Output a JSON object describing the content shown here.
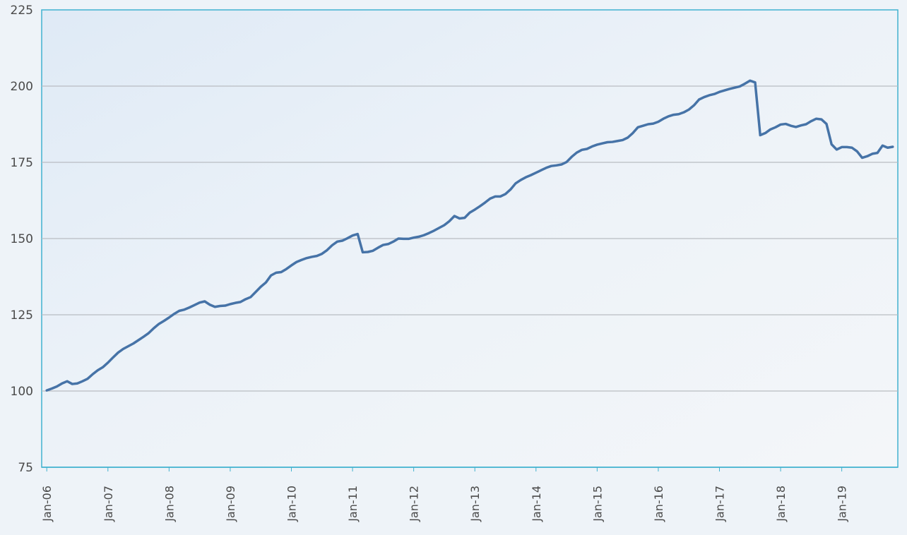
{
  "chart_data": {
    "type": "line",
    "ylim": [
      75,
      225
    ],
    "yticks": [
      75,
      100,
      125,
      150,
      175,
      200,
      225
    ],
    "xlim_months": [
      "2005-12",
      "2019-12"
    ],
    "x_tick_labels": [
      "Jan-06",
      "Jan-07",
      "Jan-08",
      "Jan-09",
      "Jan-10",
      "Jan-11",
      "Jan-12",
      "Jan-13",
      "Jan-14",
      "Jan-15",
      "Jan-16",
      "Jan-17",
      "Jan-18",
      "Jan-19"
    ],
    "grid": true,
    "legend": false,
    "series": [
      {
        "color": "#4673a7",
        "start": "2006-01",
        "values": [
          100.2,
          100.8,
          101.5,
          102.5,
          103.2,
          102.3,
          102.5,
          103.2,
          104.0,
          105.5,
          106.8,
          107.8,
          109.3,
          111.0,
          112.6,
          113.8,
          114.7,
          115.6,
          116.7,
          117.8,
          119.0,
          120.6,
          122.0,
          123.0,
          124.1,
          125.3,
          126.3,
          126.7,
          127.4,
          128.2,
          129.0,
          129.4,
          128.3,
          127.6,
          127.9,
          128.0,
          128.5,
          128.9,
          129.2,
          130.1,
          130.8,
          132.5,
          134.2,
          135.6,
          137.9,
          138.8,
          139.0,
          140.0,
          141.2,
          142.3,
          143.0,
          143.6,
          144.0,
          144.3,
          145.0,
          146.2,
          147.8,
          149.0,
          149.3,
          150.1,
          151.0,
          151.5,
          145.5,
          145.6,
          146.0,
          147.0,
          147.9,
          148.2,
          149.0,
          150.0,
          149.9,
          149.9,
          150.3,
          150.6,
          151.1,
          151.8,
          152.6,
          153.5,
          154.4,
          155.7,
          157.4,
          156.6,
          156.8,
          158.5,
          159.5,
          160.6,
          161.8,
          163.1,
          163.8,
          163.8,
          164.6,
          166.1,
          168.1,
          169.2,
          170.1,
          170.8,
          171.6,
          172.4,
          173.2,
          173.8,
          174.0,
          174.3,
          175.1,
          176.8,
          178.2,
          179.1,
          179.4,
          180.2,
          180.8,
          181.2,
          181.6,
          181.7,
          182.0,
          182.3,
          183.1,
          184.6,
          186.5,
          187.0,
          187.5,
          187.7,
          188.3,
          189.3,
          190.1,
          190.6,
          190.8,
          191.4,
          192.3,
          193.7,
          195.6,
          196.4,
          197.0,
          197.4,
          198.1,
          198.6,
          199.1,
          199.5,
          199.9,
          200.8,
          201.8,
          201.2,
          183.9,
          184.6,
          185.8,
          186.5,
          187.4,
          187.6,
          187.0,
          186.6,
          187.1,
          187.5,
          188.5,
          189.3,
          189.1,
          187.6,
          180.9,
          179.2,
          180.0,
          180.0,
          179.8,
          178.6,
          176.5,
          177.0,
          177.8,
          178.1,
          180.5,
          179.8,
          180.1
        ]
      }
    ]
  }
}
